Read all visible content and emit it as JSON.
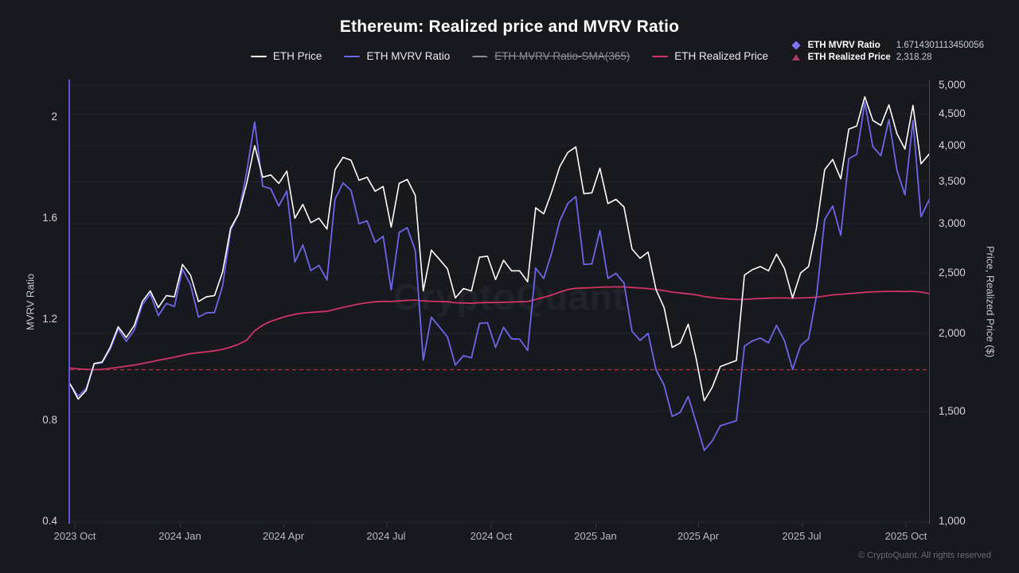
{
  "title": "Ethereum: Realized price and MVRV Ratio",
  "footer": "© CryptoQuant. All rights reserved",
  "legend": {
    "items": [
      {
        "label": "ETH Price",
        "color": "#ffffff",
        "disabled": false
      },
      {
        "label": "ETH MVRV Ratio",
        "color": "#6b67e8",
        "disabled": false
      },
      {
        "label": "ETH MVRV Ratio-SMA(365)",
        "color": "#8d8d98",
        "disabled": true
      },
      {
        "label": "ETH Realized Price",
        "color": "#d03466",
        "disabled": false
      }
    ]
  },
  "latest_values": {
    "rows": [
      {
        "marker": "diamond",
        "marker_color": "#7b74f2",
        "label": "ETH MVRV Ratio",
        "value": "1.6714301113450056"
      },
      {
        "marker": "triangle",
        "marker_color": "#b23a5f",
        "label": "ETH Realized Price",
        "value": "2,318.28"
      }
    ]
  },
  "chart_data": {
    "type": "line",
    "title": "Ethereum: Realized price and MVRV Ratio",
    "watermark": "CryptoQuant",
    "sampling": "weekly",
    "colors": {
      "background": "#18181f",
      "grid": "#23232b",
      "left_spine": "#5b57d9",
      "right_spine": "#474750",
      "threshold": "#b7323f"
    },
    "x_axis": {
      "ticks": [
        {
          "label": "2023 Oct",
          "pos": 0.006
        },
        {
          "label": "2024 Jan",
          "pos": 0.128
        },
        {
          "label": "2024 Apr",
          "pos": 0.248
        },
        {
          "label": "2024 Jul",
          "pos": 0.368
        },
        {
          "label": "2024 Oct",
          "pos": 0.49
        },
        {
          "label": "2025 Jan",
          "pos": 0.612
        },
        {
          "label": "2025 Apr",
          "pos": 0.731
        },
        {
          "label": "2025 Jul",
          "pos": 0.852
        },
        {
          "label": "2025 Oct",
          "pos": 0.973
        }
      ]
    },
    "y_left": {
      "title": "MVRV Ratio",
      "scale": "linear",
      "range": [
        0.4,
        2.0
      ],
      "ticks": [
        {
          "value": 2,
          "label": "2"
        },
        {
          "value": 1.6,
          "label": "1.6"
        },
        {
          "value": 1.2,
          "label": "1.2"
        },
        {
          "value": 0.8,
          "label": "0.8"
        },
        {
          "value": 0.4,
          "label": "0.4"
        }
      ]
    },
    "y_right": {
      "title": "Price, Realized Price ($)",
      "scale": "log",
      "range": [
        1000,
        5000
      ],
      "ticks": [
        {
          "value": 5000,
          "label": "5,000"
        },
        {
          "value": 4500,
          "label": "4,500"
        },
        {
          "value": 4000,
          "label": "4,000"
        },
        {
          "value": 3500,
          "label": "3,500"
        },
        {
          "value": 3000,
          "label": "3,000"
        },
        {
          "value": 2500,
          "label": "2,500"
        },
        {
          "value": 2000,
          "label": "2,000"
        },
        {
          "value": 1500,
          "label": "1,500"
        },
        {
          "value": 1000,
          "label": "1,000"
        }
      ]
    },
    "threshold": {
      "axis": "left",
      "value": 1.0,
      "style": "dashed"
    },
    "series": [
      {
        "name": "ETH Price",
        "axis": "right",
        "color": "#ffffff",
        "width": 1.6,
        "values": [
          1660,
          1570,
          1620,
          1790,
          1800,
          1900,
          2050,
          1970,
          2060,
          2250,
          2340,
          2200,
          2300,
          2290,
          2580,
          2480,
          2250,
          2290,
          2300,
          2510,
          2950,
          3110,
          3480,
          4000,
          3560,
          3590,
          3480,
          3640,
          3060,
          3220,
          3010,
          3060,
          2940,
          3660,
          3830,
          3790,
          3520,
          3560,
          3380,
          3440,
          2960,
          3480,
          3530,
          3330,
          2340,
          2720,
          2630,
          2540,
          2280,
          2360,
          2340,
          2650,
          2660,
          2440,
          2620,
          2520,
          2520,
          2420,
          3180,
          3110,
          3370,
          3700,
          3900,
          3980,
          3350,
          3360,
          3680,
          3230,
          3280,
          3190,
          2730,
          2640,
          2700,
          2350,
          2200,
          1900,
          1930,
          2070,
          1820,
          1560,
          1640,
          1770,
          1790,
          1810,
          2480,
          2530,
          2560,
          2520,
          2680,
          2540,
          2280,
          2500,
          2560,
          2960,
          3660,
          3800,
          3540,
          4250,
          4300,
          4790,
          4390,
          4310,
          4650,
          4180,
          3950,
          4640,
          3740,
          3875
        ]
      },
      {
        "name": "ETH MVRV Ratio",
        "axis": "left",
        "color": "#6b67e8",
        "width": 1.8,
        "values": [
          0.943,
          0.895,
          0.925,
          1.023,
          1.027,
          1.081,
          1.161,
          1.112,
          1.157,
          1.257,
          1.3,
          1.214,
          1.262,
          1.25,
          1.398,
          1.336,
          1.208,
          1.225,
          1.226,
          1.331,
          1.551,
          1.618,
          1.783,
          1.98,
          1.726,
          1.716,
          1.648,
          1.707,
          1.426,
          1.494,
          1.392,
          1.413,
          1.355,
          1.674,
          1.739,
          1.71,
          1.578,
          1.589,
          1.504,
          1.528,
          1.316,
          1.543,
          1.562,
          1.472,
          1.038,
          1.208,
          1.169,
          1.13,
          1.018,
          1.055,
          1.047,
          1.183,
          1.186,
          1.088,
          1.168,
          1.122,
          1.121,
          1.076,
          1.402,
          1.361,
          1.462,
          1.588,
          1.658,
          1.685,
          1.416,
          1.419,
          1.551,
          1.361,
          1.381,
          1.343,
          1.152,
          1.116,
          1.144,
          0.999,
          0.939,
          0.815,
          0.831,
          0.894,
          0.789,
          0.681,
          0.718,
          0.778,
          0.788,
          0.798,
          1.093,
          1.114,
          1.125,
          1.106,
          1.175,
          1.114,
          1.001,
          1.096,
          1.122,
          1.295,
          1.594,
          1.648,
          1.532,
          1.835,
          1.852,
          2.058,
          1.883,
          1.847,
          1.99,
          1.789,
          1.692,
          1.986,
          1.605,
          1.6714
        ]
      },
      {
        "name": "ETH Realized Price",
        "axis": "right",
        "color": "#d03466",
        "width": 1.8,
        "values": [
          1760,
          1755,
          1752,
          1750,
          1752,
          1758,
          1765,
          1772,
          1780,
          1790,
          1800,
          1812,
          1822,
          1832,
          1845,
          1856,
          1863,
          1869,
          1876,
          1886,
          1902,
          1922,
          1952,
          2020,
          2062,
          2092,
          2112,
          2132,
          2146,
          2156,
          2162,
          2166,
          2170,
          2186,
          2202,
          2216,
          2230,
          2240,
          2248,
          2252,
          2250,
          2255,
          2260,
          2262,
          2255,
          2252,
          2250,
          2248,
          2240,
          2238,
          2236,
          2240,
          2242,
          2242,
          2244,
          2246,
          2248,
          2250,
          2268,
          2285,
          2305,
          2330,
          2352,
          2362,
          2366,
          2368,
          2372,
          2374,
          2375,
          2375,
          2370,
          2365,
          2360,
          2352,
          2342,
          2330,
          2322,
          2315,
          2306,
          2292,
          2283,
          2276,
          2271,
          2267,
          2268,
          2272,
          2276,
          2278,
          2280,
          2280,
          2278,
          2280,
          2282,
          2286,
          2296,
          2306,
          2310,
          2316,
          2322,
          2328,
          2332,
          2334,
          2336,
          2336,
          2335,
          2336,
          2330,
          2318.28
        ]
      }
    ]
  }
}
